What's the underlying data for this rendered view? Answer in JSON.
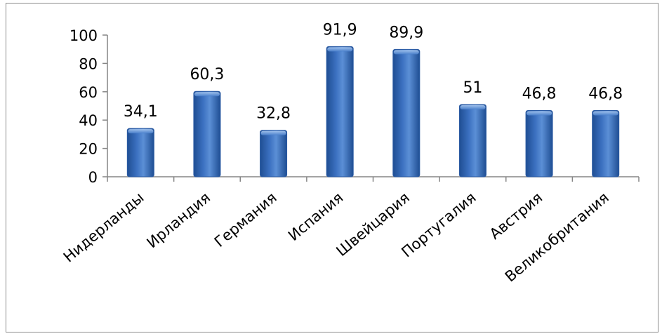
{
  "chart_data": {
    "type": "bar",
    "categories": [
      "Нидерланды",
      "Ирландия",
      "Германия",
      "Испания",
      "Швейцария",
      "Португалия",
      "Австрия",
      "Великобритания"
    ],
    "values": [
      34.1,
      60.3,
      32.8,
      91.9,
      89.9,
      51,
      46.8,
      46.8
    ],
    "data_labels": [
      "34,1",
      "60,3",
      "32,8",
      "91,9",
      "89,9",
      "51",
      "46,8",
      "46,8"
    ],
    "yticks": [
      "0",
      "20",
      "40",
      "60",
      "80",
      "100"
    ],
    "ylim": [
      0,
      100
    ],
    "grid": false,
    "legend": "none",
    "title": "",
    "xlabel": "",
    "ylabel": "",
    "colors": {
      "bar_light": "#7fa9e0",
      "bar_mid": "#3b70c0",
      "bar_dark": "#1f4e93",
      "axis": "#868686"
    }
  }
}
